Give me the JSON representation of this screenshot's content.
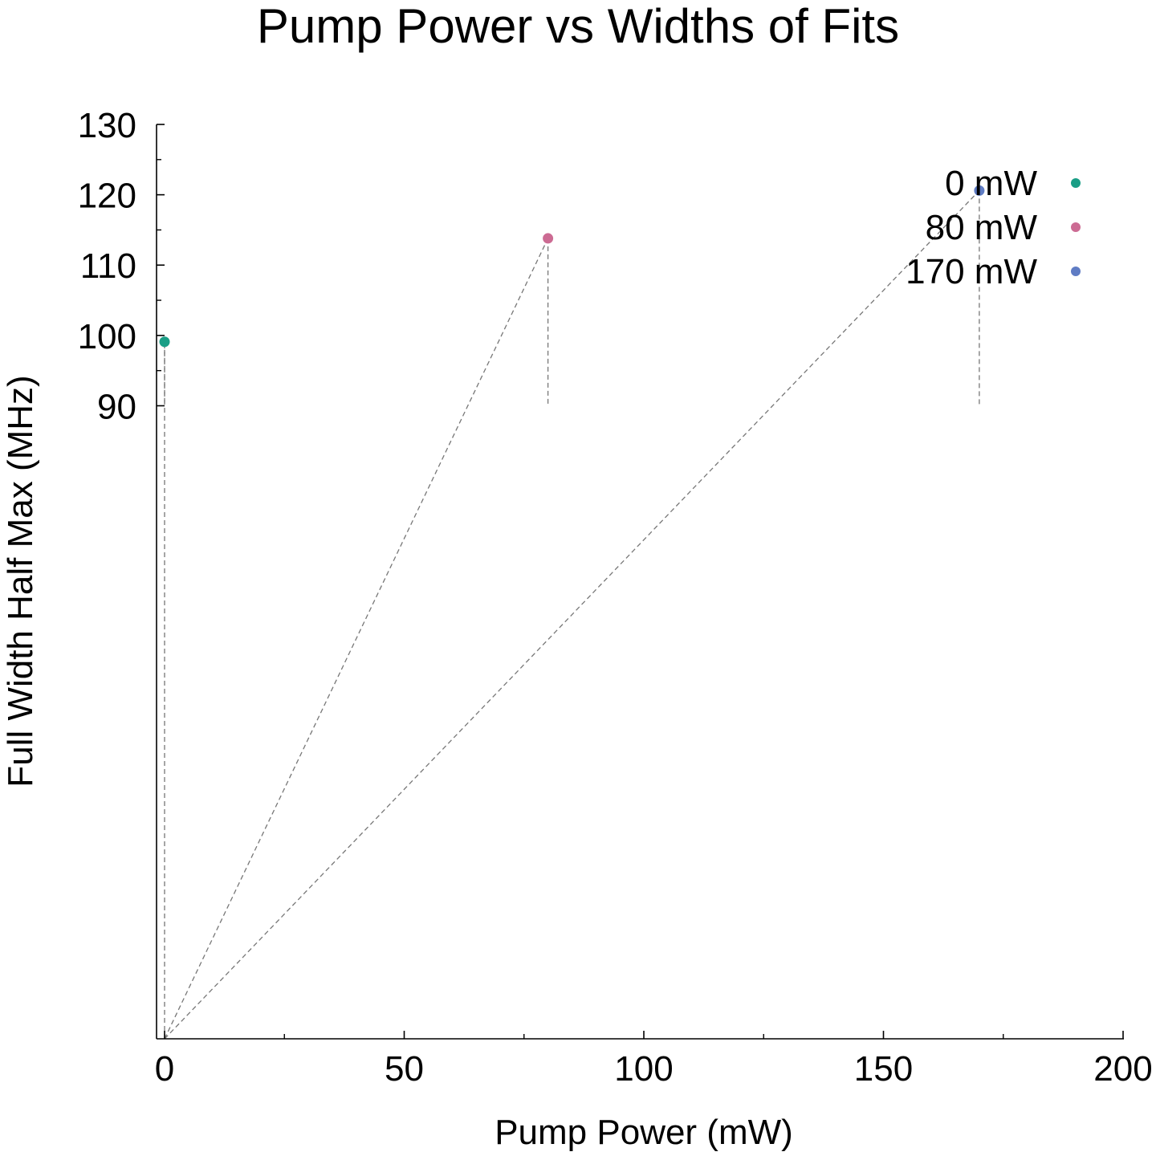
{
  "chart_data": {
    "type": "scatter",
    "title": "Pump Power vs Widths of Fits",
    "xlabel": "Pump Power (mW)",
    "ylabel": "Full Width Half Max (MHz)",
    "xlim": [
      0,
      200
    ],
    "ylim": [
      0,
      130
    ],
    "x_ticks": [
      0,
      50,
      100,
      150,
      200
    ],
    "y_ticks": [
      90,
      100,
      110,
      120,
      130
    ],
    "grid": false,
    "legend_position": "top-right",
    "series": [
      {
        "name": "0 mW",
        "color": "#1a9e86",
        "x": [
          0
        ],
        "y": [
          99.1
        ]
      },
      {
        "name": "80 mW",
        "color": "#cc6b93",
        "x": [
          80
        ],
        "y": [
          113.8
        ]
      },
      {
        "name": "170 mW",
        "color": "#5f7cc4",
        "x": [
          170
        ],
        "y": [
          120.6
        ]
      }
    ]
  }
}
